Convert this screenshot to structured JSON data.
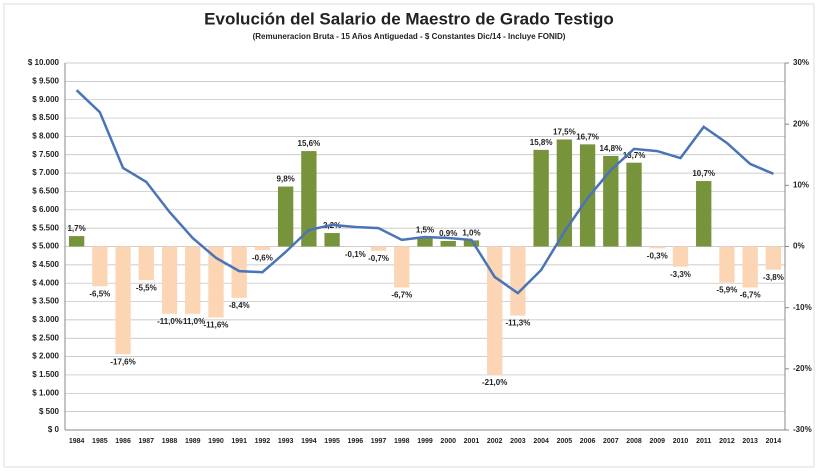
{
  "chart_data": {
    "type": "bar_line",
    "title": "Evolución del Salario de Maestro de Grado Testigo",
    "subtitle": "(Remuneracion Bruta - 15 Años Antiguedad - $ Constantes Dic/14 - Incluye FONID)",
    "categories": [
      "1984",
      "1985",
      "1986",
      "1987",
      "1988",
      "1989",
      "1990",
      "1991",
      "1992",
      "1993",
      "1994",
      "1995",
      "1996",
      "1997",
      "1998",
      "1999",
      "2000",
      "2001",
      "2002",
      "2003",
      "2004",
      "2005",
      "2006",
      "2007",
      "2008",
      "2009",
      "2010",
      "2011",
      "2012",
      "2013",
      "2014"
    ],
    "series": [
      {
        "type": "bar",
        "axis": "y2",
        "color": "#77933c",
        "negative_color": "#fcd5b5",
        "values": [
          1.7,
          -6.5,
          -17.6,
          -5.5,
          -11.0,
          -11.0,
          -11.6,
          -8.4,
          -0.6,
          9.8,
          15.6,
          2.2,
          -0.1,
          -0.7,
          -6.7,
          1.5,
          0.9,
          1.0,
          -21.0,
          -11.3,
          15.8,
          17.5,
          16.7,
          14.8,
          13.7,
          -0.3,
          -3.3,
          10.7,
          -5.9,
          -6.7,
          -3.8
        ],
        "value_labels": [
          "1,7%",
          "-6,5%",
          "-17,6%",
          "-5,5%",
          "-11,0%",
          "-11,0%",
          "-11,6%",
          "-8,4%",
          "-0,6%",
          "9,8%",
          "15,6%",
          "2,2%",
          "-0,1%",
          "-0,7%",
          "-6,7%",
          "1,5%",
          "0,9%",
          "1,0%",
          "-21,0%",
          "-11,3%",
          "15,8%",
          "17,5%",
          "16,7%",
          "14,8%",
          "13,7%",
          "-0,3%",
          "-3,3%",
          "10,7%",
          "-5,9%",
          "-6,7%",
          "-3,8%"
        ]
      },
      {
        "type": "line",
        "axis": "y",
        "color": "#4a74b8",
        "values": [
          9260,
          8660,
          7140,
          6760,
          5940,
          5230,
          4690,
          4330,
          4300,
          4850,
          5450,
          5590,
          5530,
          5500,
          5180,
          5260,
          5230,
          5180,
          4170,
          3730,
          4360,
          5400,
          6320,
          7080,
          7660,
          7600,
          7410,
          8260,
          7820,
          7250,
          6980
        ]
      }
    ],
    "ylim": [
      0,
      10000
    ],
    "yticks": [
      {
        "value": 0,
        "label": "$ 0"
      },
      {
        "value": 500,
        "label": "$ 500"
      },
      {
        "value": 1000,
        "label": "$ 1.000"
      },
      {
        "value": 1500,
        "label": "$ 1.500"
      },
      {
        "value": 2000,
        "label": "$ 2.000"
      },
      {
        "value": 2500,
        "label": "$ 2.500"
      },
      {
        "value": 3000,
        "label": "$ 3.000"
      },
      {
        "value": 3500,
        "label": "$ 3.500"
      },
      {
        "value": 4000,
        "label": "$ 4.000"
      },
      {
        "value": 4500,
        "label": "$ 4.500"
      },
      {
        "value": 5000,
        "label": "$ 5.000"
      },
      {
        "value": 5500,
        "label": "$ 5.500"
      },
      {
        "value": 6000,
        "label": "$ 6.000"
      },
      {
        "value": 6500,
        "label": "$ 6.500"
      },
      {
        "value": 7000,
        "label": "$ 7.000"
      },
      {
        "value": 7500,
        "label": "$ 7.500"
      },
      {
        "value": 8000,
        "label": "$ 8.000"
      },
      {
        "value": 8500,
        "label": "$ 8.500"
      },
      {
        "value": 9000,
        "label": "$ 9.000"
      },
      {
        "value": 9500,
        "label": "$ 9.500"
      },
      {
        "value": 10000,
        "label": "$ 10.000"
      }
    ],
    "y2lim": [
      -30,
      30
    ],
    "y2ticks": [
      {
        "value": -30,
        "label": "-30%"
      },
      {
        "value": -20,
        "label": "-20%"
      },
      {
        "value": -10,
        "label": "-10%"
      },
      {
        "value": 0,
        "label": "0%"
      },
      {
        "value": 10,
        "label": "10%"
      },
      {
        "value": 20,
        "label": "20%"
      },
      {
        "value": 30,
        "label": "30%"
      }
    ],
    "grid": true
  }
}
